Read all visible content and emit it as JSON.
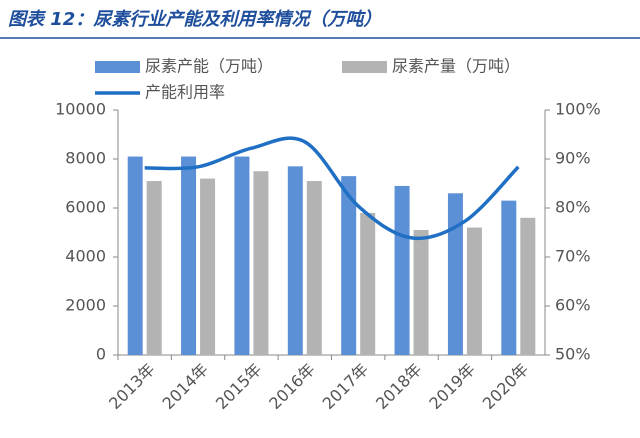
{
  "chart_data": {
    "type": "bar_line",
    "title": "图表 12：尿素行业产能及利用率情况（万吨）",
    "categories": [
      "2013年",
      "2014年",
      "2015年",
      "2016年",
      "2017年",
      "2018年",
      "2019年",
      "2020年"
    ],
    "series": [
      {
        "name": "尿素产能（万吨）",
        "color": "#5b8fd6",
        "type": "bar",
        "values": [
          8100,
          8100,
          8100,
          7700,
          7300,
          6900,
          6600,
          6300
        ]
      },
      {
        "name": "尿素产量（万吨）",
        "color": "#b3b3b3",
        "type": "bar",
        "values": [
          7100,
          7200,
          7500,
          7100,
          5800,
          5100,
          5200,
          5600
        ]
      },
      {
        "name": "产能利用率",
        "color": "#1f6fc4",
        "type": "line",
        "axis": "y2",
        "values": [
          88.2,
          88.4,
          92.2,
          93.5,
          80.4,
          73.9,
          77.3,
          88.4
        ]
      }
    ],
    "ylim": [
      0,
      10000
    ],
    "yticks": [
      0,
      2000,
      4000,
      6000,
      8000,
      10000
    ],
    "y2lim": [
      50,
      100
    ],
    "y2ticks": [
      {
        "value": 50,
        "label": "50%"
      },
      {
        "value": 60,
        "label": "60%"
      },
      {
        "value": 70,
        "label": "70%"
      },
      {
        "value": 80,
        "label": "80%"
      },
      {
        "value": 90,
        "label": "90%"
      },
      {
        "value": 100,
        "label": "100%"
      }
    ]
  }
}
